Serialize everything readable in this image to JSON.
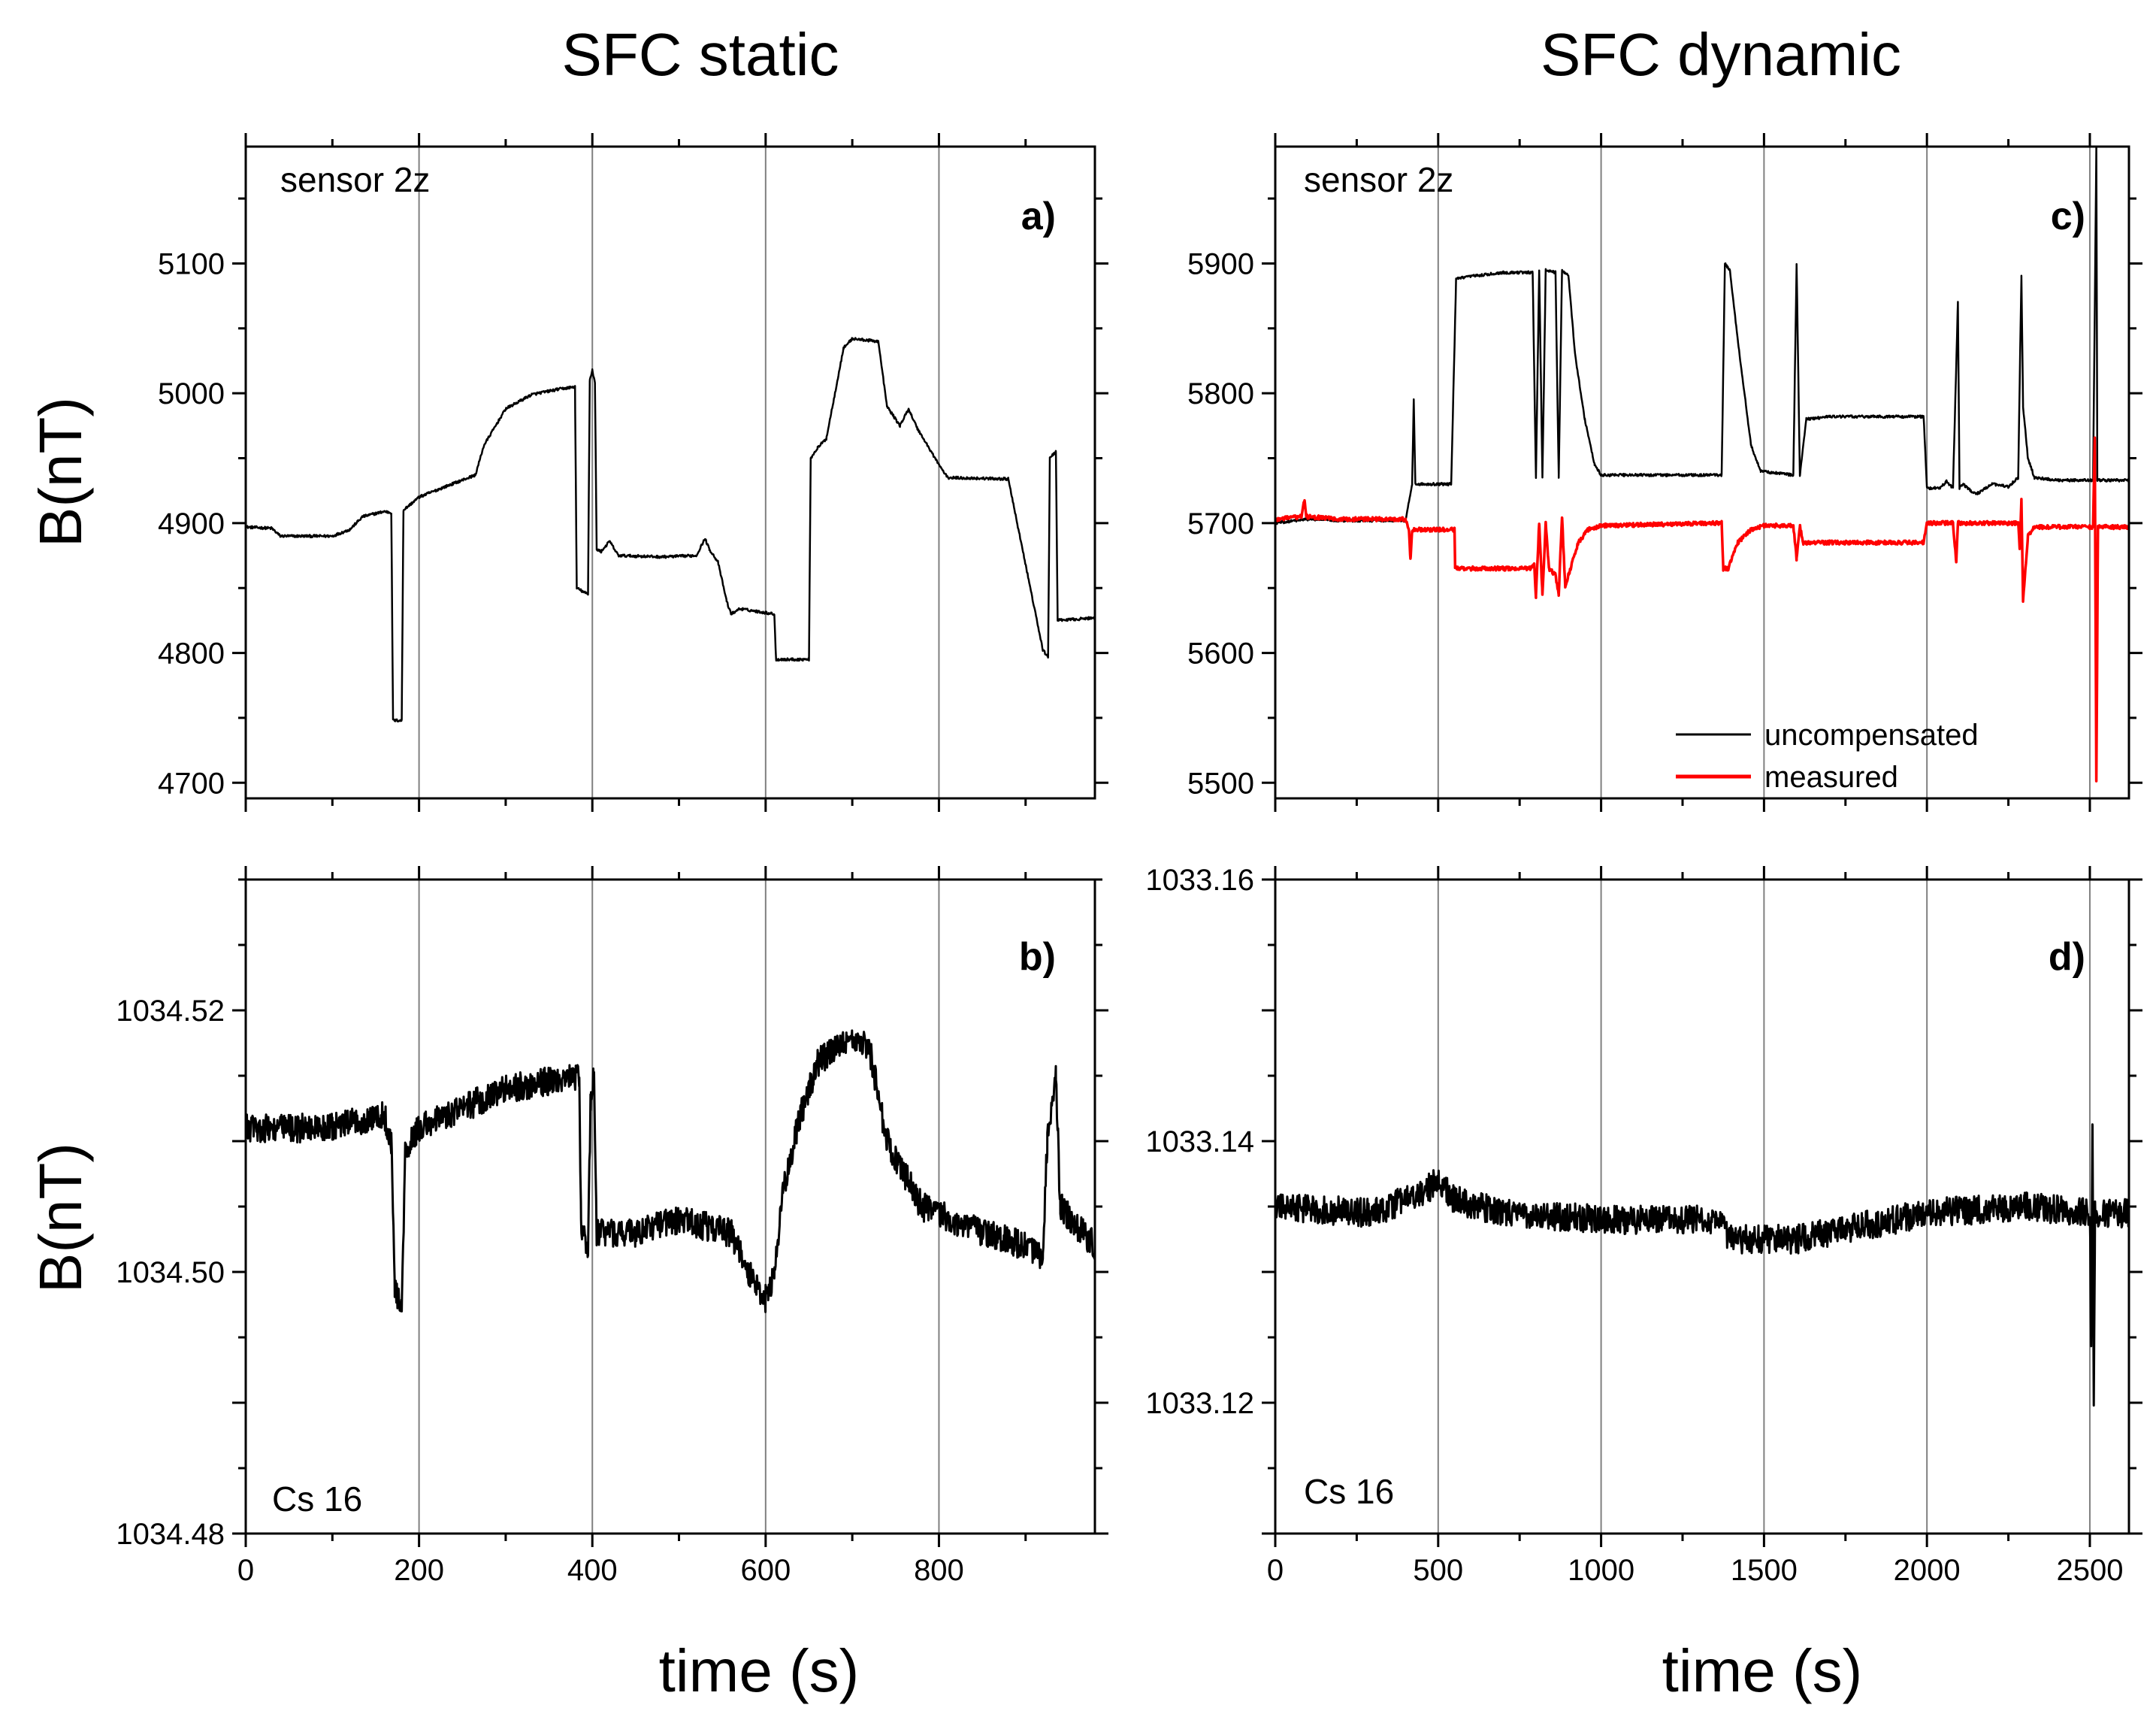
{
  "column_titles": {
    "left": "SFC static",
    "right": "SFC dynamic"
  },
  "shared_labels": {
    "ylabel_top": "B(nT)",
    "ylabel_bottom": "B(nT)",
    "xlabel_left": "time (s)",
    "xlabel_right": "time (s)"
  },
  "chart_data": [
    {
      "id": "a",
      "type": "line",
      "panel_label": "a)",
      "sensor_label": "sensor 2z",
      "xlim": [
        0,
        980
      ],
      "ylim": [
        4688,
        5190
      ],
      "xticks": [
        0,
        200,
        400,
        600,
        800
      ],
      "yticks": [
        4700,
        4800,
        4900,
        5000,
        5100
      ],
      "ytick_labels": [
        "4700",
        "4800",
        "4900",
        "5000",
        "5100"
      ],
      "vlines": [
        200,
        400,
        600,
        800
      ],
      "series": [
        {
          "name": "uncompensated",
          "color": "#000000",
          "noise": 1,
          "points": [
            [
              0,
              4897
            ],
            [
              30,
              4896
            ],
            [
              40,
              4890
            ],
            [
              100,
              4890
            ],
            [
              120,
              4895
            ],
            [
              135,
              4905
            ],
            [
              160,
              4909
            ],
            [
              168,
              4908
            ],
            [
              170,
              4748
            ],
            [
              180,
              4748
            ],
            [
              182,
              4910
            ],
            [
              200,
              4920
            ],
            [
              230,
              4928
            ],
            [
              265,
              4937
            ],
            [
              275,
              4960
            ],
            [
              300,
              4988
            ],
            [
              330,
              4999
            ],
            [
              360,
              5003
            ],
            [
              380,
              5005
            ],
            [
              382,
              4850
            ],
            [
              395,
              4845
            ],
            [
              397,
              5010
            ],
            [
              400,
              5018
            ],
            [
              403,
              5008
            ],
            [
              405,
              4880
            ],
            [
              410,
              4878
            ],
            [
              420,
              4886
            ],
            [
              430,
              4875
            ],
            [
              480,
              4874
            ],
            [
              520,
              4875
            ],
            [
              530,
              4888
            ],
            [
              535,
              4880
            ],
            [
              545,
              4870
            ],
            [
              555,
              4840
            ],
            [
              560,
              4830
            ],
            [
              570,
              4834
            ],
            [
              600,
              4831
            ],
            [
              610,
              4830
            ],
            [
              612,
              4795
            ],
            [
              650,
              4795
            ],
            [
              652,
              4950
            ],
            [
              660,
              4958
            ],
            [
              670,
              4965
            ],
            [
              690,
              5035
            ],
            [
              700,
              5042
            ],
            [
              730,
              5040
            ],
            [
              740,
              4990
            ],
            [
              755,
              4975
            ],
            [
              765,
              4988
            ],
            [
              775,
              4973
            ],
            [
              800,
              4945
            ],
            [
              810,
              4935
            ],
            [
              880,
              4934
            ],
            [
              920,
              4802
            ],
            [
              926,
              4797
            ],
            [
              928,
              4950
            ],
            [
              935,
              4955
            ],
            [
              937,
              4825
            ],
            [
              980,
              4827
            ]
          ]
        }
      ]
    },
    {
      "id": "c",
      "type": "line",
      "panel_label": "c)",
      "sensor_label": "sensor 2z",
      "xlim": [
        0,
        2620
      ],
      "ylim": [
        5488,
        5990
      ],
      "xticks": [
        0,
        500,
        1000,
        1500,
        2000,
        2500
      ],
      "yticks": [
        5500,
        5600,
        5700,
        5800,
        5900
      ],
      "ytick_labels": [
        "5500",
        "5600",
        "5700",
        "5800",
        "5900"
      ],
      "vlines": [
        500,
        1000,
        1500,
        2000,
        2500
      ],
      "legend": {
        "position": "bottom-right",
        "entries": [
          "uncompensated",
          "measured"
        ]
      },
      "series": [
        {
          "name": "uncompensated",
          "color": "#000000",
          "noise": 1,
          "points": [
            [
              0,
              5700
            ],
            [
              100,
              5703
            ],
            [
              200,
              5702
            ],
            [
              400,
              5702
            ],
            [
              420,
              5730
            ],
            [
              425,
              5795
            ],
            [
              430,
              5730
            ],
            [
              540,
              5730
            ],
            [
              555,
              5888
            ],
            [
              600,
              5890
            ],
            [
              700,
              5893
            ],
            [
              790,
              5893
            ],
            [
              800,
              5735
            ],
            [
              810,
              5895
            ],
            [
              820,
              5735
            ],
            [
              830,
              5895
            ],
            [
              860,
              5893
            ],
            [
              870,
              5735
            ],
            [
              880,
              5895
            ],
            [
              900,
              5890
            ],
            [
              920,
              5830
            ],
            [
              950,
              5780
            ],
            [
              980,
              5745
            ],
            [
              1000,
              5737
            ],
            [
              1200,
              5737
            ],
            [
              1350,
              5737
            ],
            [
              1370,
              5737
            ],
            [
              1380,
              5900
            ],
            [
              1395,
              5895
            ],
            [
              1420,
              5840
            ],
            [
              1460,
              5760
            ],
            [
              1490,
              5740
            ],
            [
              1590,
              5737
            ],
            [
              1600,
              5900
            ],
            [
              1610,
              5737
            ],
            [
              1630,
              5780
            ],
            [
              1700,
              5782
            ],
            [
              1900,
              5782
            ],
            [
              1990,
              5782
            ],
            [
              2000,
              5727
            ],
            [
              2040,
              5727
            ],
            [
              2060,
              5732
            ],
            [
              2080,
              5727
            ],
            [
              2095,
              5870
            ],
            [
              2100,
              5727
            ],
            [
              2110,
              5730
            ],
            [
              2150,
              5722
            ],
            [
              2200,
              5730
            ],
            [
              2250,
              5728
            ],
            [
              2280,
              5735
            ],
            [
              2290,
              5890
            ],
            [
              2295,
              5790
            ],
            [
              2310,
              5750
            ],
            [
              2330,
              5735
            ],
            [
              2400,
              5733
            ],
            [
              2500,
              5733
            ],
            [
              2510,
              5733
            ],
            [
              2520,
              5990
            ],
            [
              2523,
              5733
            ],
            [
              2530,
              5733
            ],
            [
              2620,
              5733
            ]
          ]
        },
        {
          "name": "measured",
          "color": "#ff0000",
          "noise": 1.5,
          "points": [
            [
              0,
              5703
            ],
            [
              80,
              5705
            ],
            [
              90,
              5718
            ],
            [
              95,
              5705
            ],
            [
              200,
              5703
            ],
            [
              400,
              5703
            ],
            [
              410,
              5695
            ],
            [
              415,
              5672
            ],
            [
              420,
              5695
            ],
            [
              550,
              5695
            ],
            [
              552,
              5667
            ],
            [
              560,
              5665
            ],
            [
              780,
              5665
            ],
            [
              795,
              5668
            ],
            [
              800,
              5643
            ],
            [
              810,
              5700
            ],
            [
              820,
              5645
            ],
            [
              830,
              5700
            ],
            [
              840,
              5665
            ],
            [
              860,
              5660
            ],
            [
              870,
              5645
            ],
            [
              880,
              5705
            ],
            [
              890,
              5650
            ],
            [
              900,
              5660
            ],
            [
              930,
              5685
            ],
            [
              960,
              5695
            ],
            [
              1000,
              5698
            ],
            [
              1350,
              5700
            ],
            [
              1370,
              5700
            ],
            [
              1375,
              5665
            ],
            [
              1390,
              5665
            ],
            [
              1420,
              5685
            ],
            [
              1460,
              5695
            ],
            [
              1500,
              5698
            ],
            [
              1590,
              5698
            ],
            [
              1600,
              5672
            ],
            [
              1610,
              5698
            ],
            [
              1620,
              5685
            ],
            [
              1990,
              5685
            ],
            [
              2000,
              5700
            ],
            [
              2080,
              5700
            ],
            [
              2090,
              5670
            ],
            [
              2095,
              5700
            ],
            [
              2280,
              5700
            ],
            [
              2285,
              5680
            ],
            [
              2290,
              5718
            ],
            [
              2295,
              5640
            ],
            [
              2310,
              5690
            ],
            [
              2330,
              5697
            ],
            [
              2500,
              5697
            ],
            [
              2510,
              5697
            ],
            [
              2515,
              5765
            ],
            [
              2520,
              5500
            ],
            [
              2525,
              5697
            ],
            [
              2620,
              5697
            ]
          ]
        }
      ]
    },
    {
      "id": "b",
      "type": "line",
      "panel_label": "b)",
      "sensor_label": "Cs 16",
      "xlim": [
        0,
        980
      ],
      "ylim": [
        1034.48,
        1034.53
      ],
      "xticks": [
        0,
        200,
        400,
        600,
        800
      ],
      "xtick_labels": [
        "0",
        "200",
        "400",
        "600",
        "800"
      ],
      "yticks": [
        1034.48,
        1034.49,
        1034.5,
        1034.51,
        1034.52
      ],
      "ytick_labels": [
        "1034.48",
        "",
        "1034.50",
        "",
        "1034.52"
      ],
      "vlines": [
        200,
        400,
        600,
        800
      ],
      "series": [
        {
          "name": "Cs 16",
          "color": "#000000",
          "noise": 0.0011,
          "points": [
            [
              0,
              1034.511
            ],
            [
              100,
              1034.511
            ],
            [
              160,
              1034.512
            ],
            [
              168,
              1034.51
            ],
            [
              172,
              1034.499
            ],
            [
              180,
              1034.497
            ],
            [
              184,
              1034.509
            ],
            [
              200,
              1034.511
            ],
            [
              300,
              1034.514
            ],
            [
              385,
              1034.515
            ],
            [
              387,
              1034.503
            ],
            [
              395,
              1034.502
            ],
            [
              398,
              1034.513
            ],
            [
              402,
              1034.515
            ],
            [
              405,
              1034.503
            ],
            [
              450,
              1034.503
            ],
            [
              500,
              1034.504
            ],
            [
              560,
              1034.503
            ],
            [
              580,
              1034.5
            ],
            [
              600,
              1034.498
            ],
            [
              610,
              1034.5
            ],
            [
              620,
              1034.506
            ],
            [
              640,
              1034.512
            ],
            [
              660,
              1034.516
            ],
            [
              700,
              1034.518
            ],
            [
              720,
              1034.517
            ],
            [
              740,
              1034.51
            ],
            [
              780,
              1034.505
            ],
            [
              850,
              1034.503
            ],
            [
              900,
              1034.502
            ],
            [
              920,
              1034.501
            ],
            [
              925,
              1034.51
            ],
            [
              935,
              1034.515
            ],
            [
              940,
              1034.505
            ],
            [
              980,
              1034.502
            ]
          ]
        }
      ]
    },
    {
      "id": "d",
      "type": "line",
      "panel_label": "d)",
      "sensor_label": "Cs 16",
      "xlim": [
        0,
        2620
      ],
      "ylim": [
        1033.11,
        1033.16
      ],
      "xticks": [
        0,
        500,
        1000,
        1500,
        2000,
        2500
      ],
      "xtick_labels": [
        "0",
        "500",
        "1000",
        "1500",
        "2000",
        "2500"
      ],
      "yticks": [
        1033.11,
        1033.12,
        1033.13,
        1033.14,
        1033.15,
        1033.16
      ],
      "ytick_labels": [
        "",
        "1033.12",
        "",
        "1033.14",
        "",
        "1033.16"
      ],
      "vlines": [
        500,
        1000,
        1500,
        2000,
        2500
      ],
      "series": [
        {
          "name": "Cs 16",
          "color": "#000000",
          "noise": 0.0011,
          "points": [
            [
              0,
              1033.135
            ],
            [
              300,
              1033.1345
            ],
            [
              450,
              1033.136
            ],
            [
              500,
              1033.137
            ],
            [
              550,
              1033.1355
            ],
            [
              700,
              1033.1345
            ],
            [
              1000,
              1033.134
            ],
            [
              1350,
              1033.134
            ],
            [
              1400,
              1033.1325
            ],
            [
              1600,
              1033.1325
            ],
            [
              1800,
              1033.1335
            ],
            [
              2000,
              1033.1345
            ],
            [
              2300,
              1033.135
            ],
            [
              2500,
              1033.1345
            ],
            [
              2504,
              1033.125
            ],
            [
              2508,
              1033.142
            ],
            [
              2512,
              1033.12
            ],
            [
              2516,
              1033.1345
            ],
            [
              2620,
              1033.1345
            ]
          ]
        }
      ]
    }
  ]
}
